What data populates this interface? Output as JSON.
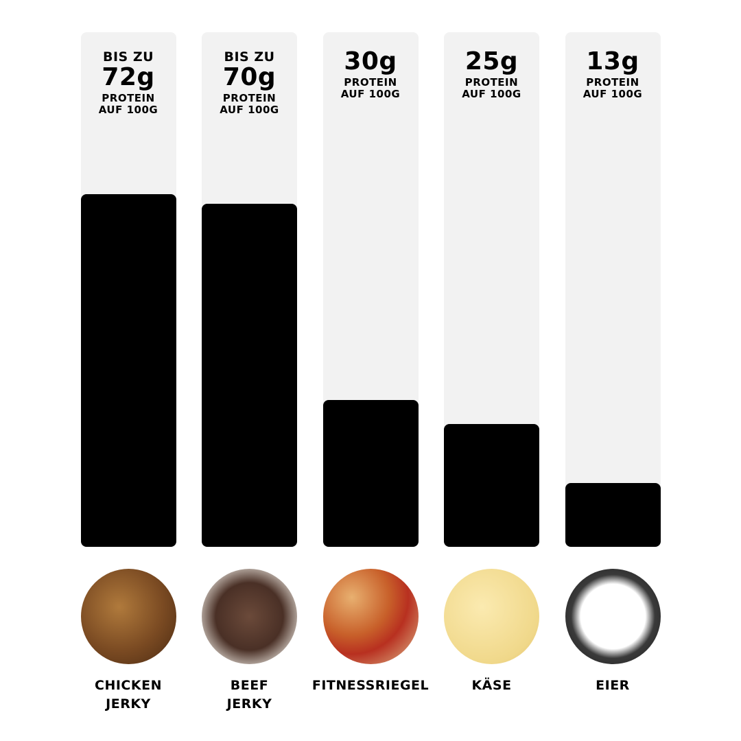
{
  "chart_data": {
    "type": "bar",
    "categories": [
      "CHICKEN JERKY",
      "BEEF JERKY",
      "FITNESSRIEGEL",
      "KÄSE",
      "EIER"
    ],
    "values": [
      72,
      70,
      30,
      25,
      13
    ],
    "value_labels": [
      "72g",
      "70g",
      "30g",
      "25g",
      "13g"
    ],
    "qualifiers": [
      "BIS ZU",
      "BIS ZU",
      null,
      null,
      null
    ],
    "unit_lines": [
      "PROTEIN",
      "AUF 100G"
    ],
    "color": "#000000",
    "background_color": "#f2f2f2",
    "ylim": [
      0,
      105
    ]
  }
}
